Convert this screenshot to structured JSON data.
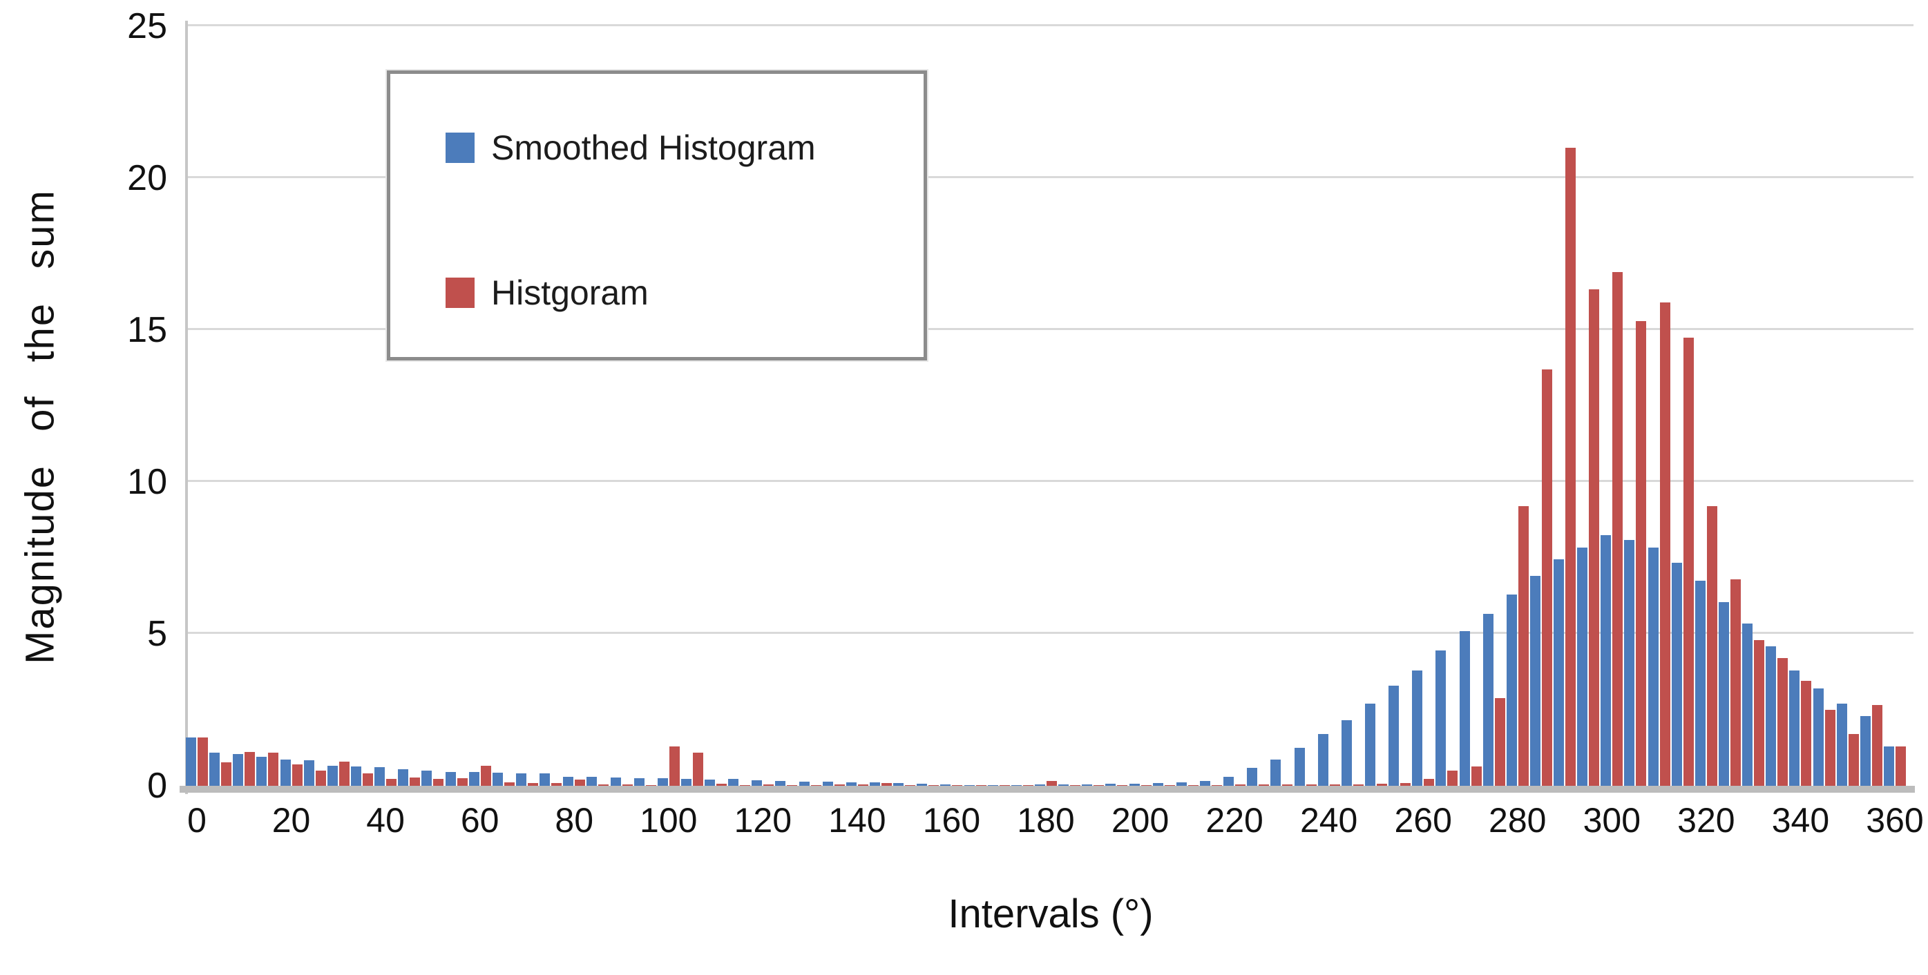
{
  "chart_data": {
    "type": "bar",
    "title": "",
    "xlabel": "Intervals (°)",
    "ylabel": "Magnitude  of  the  sum",
    "xlim": [
      0,
      360
    ],
    "ylim": [
      0,
      25
    ],
    "grid": true,
    "legend_position": "top-left",
    "bin_width_degrees": 5,
    "x_tick_labels": [
      0,
      20,
      40,
      60,
      80,
      100,
      120,
      140,
      160,
      180,
      200,
      220,
      240,
      260,
      280,
      300,
      320,
      340,
      360
    ],
    "y_tick_labels": [
      0,
      5,
      10,
      15,
      20,
      25
    ],
    "categories": [
      0,
      5,
      10,
      15,
      20,
      25,
      30,
      35,
      40,
      45,
      50,
      55,
      60,
      65,
      70,
      75,
      80,
      85,
      90,
      95,
      100,
      105,
      110,
      115,
      120,
      125,
      130,
      135,
      140,
      145,
      150,
      155,
      160,
      165,
      170,
      175,
      180,
      185,
      190,
      195,
      200,
      205,
      210,
      215,
      220,
      225,
      230,
      235,
      240,
      245,
      250,
      255,
      260,
      265,
      270,
      275,
      280,
      285,
      290,
      295,
      300,
      305,
      310,
      315,
      320,
      325,
      330,
      335,
      340,
      345,
      350,
      355,
      360
    ],
    "series": [
      {
        "name": "Smoothed Histogram",
        "color": "#4c7cbb",
        "values": [
          1.6,
          1.1,
          1.05,
          0.95,
          0.87,
          0.83,
          0.65,
          0.64,
          0.61,
          0.55,
          0.5,
          0.45,
          0.45,
          0.43,
          0.4,
          0.42,
          0.3,
          0.29,
          0.27,
          0.26,
          0.24,
          0.23,
          0.2,
          0.22,
          0.18,
          0.16,
          0.14,
          0.13,
          0.12,
          0.12,
          0.1,
          0.06,
          0.04,
          0.03,
          0.03,
          0.03,
          0.04,
          0.05,
          0.05,
          0.06,
          0.07,
          0.08,
          0.11,
          0.17,
          0.29,
          0.59,
          0.87,
          1.25,
          1.7,
          2.15,
          2.7,
          3.3,
          3.8,
          4.45,
          5.1,
          5.65,
          6.3,
          6.9,
          7.45,
          7.85,
          8.25,
          8.1,
          7.85,
          7.35,
          6.75,
          6.05,
          5.35,
          4.6,
          3.8,
          3.2,
          2.7,
          2.3,
          1.3
        ]
      },
      {
        "name": "Histgoram",
        "color": "#c0504d",
        "values": [
          1.6,
          0.78,
          1.12,
          1.08,
          0.7,
          0.5,
          0.8,
          0.42,
          0.23,
          0.28,
          0.23,
          0.25,
          0.65,
          0.12,
          0.1,
          0.1,
          0.2,
          0.04,
          0.04,
          0.02,
          1.3,
          1.08,
          0.06,
          0.02,
          0.05,
          0.02,
          0.02,
          0.05,
          0.05,
          0.08,
          0.03,
          0.02,
          0.02,
          0.02,
          0.02,
          0.02,
          0.17,
          0.03,
          0.02,
          0.02,
          0.02,
          0.02,
          0.03,
          0.03,
          0.04,
          0.04,
          0.05,
          0.05,
          0.05,
          0.05,
          0.06,
          0.08,
          0.23,
          0.49,
          0.64,
          2.88,
          9.2,
          13.7,
          21,
          16.35,
          16.9,
          15.3,
          15.9,
          14.75,
          9.2,
          6.8,
          4.8,
          4.2,
          3.45,
          2.5,
          1.7,
          2.65,
          1.3
        ]
      }
    ],
    "gridline_color": "#d9d9d9",
    "axis_line_color": "#c6c6c6",
    "baseline_color": "#bcbcbc"
  },
  "legend": {
    "smoothed_label": "Smoothed Histogram",
    "histogram_label": "Histgoram"
  },
  "axes": {
    "x_title": "Intervals (°)",
    "y_title": "Magnitude  of  the  sum"
  }
}
